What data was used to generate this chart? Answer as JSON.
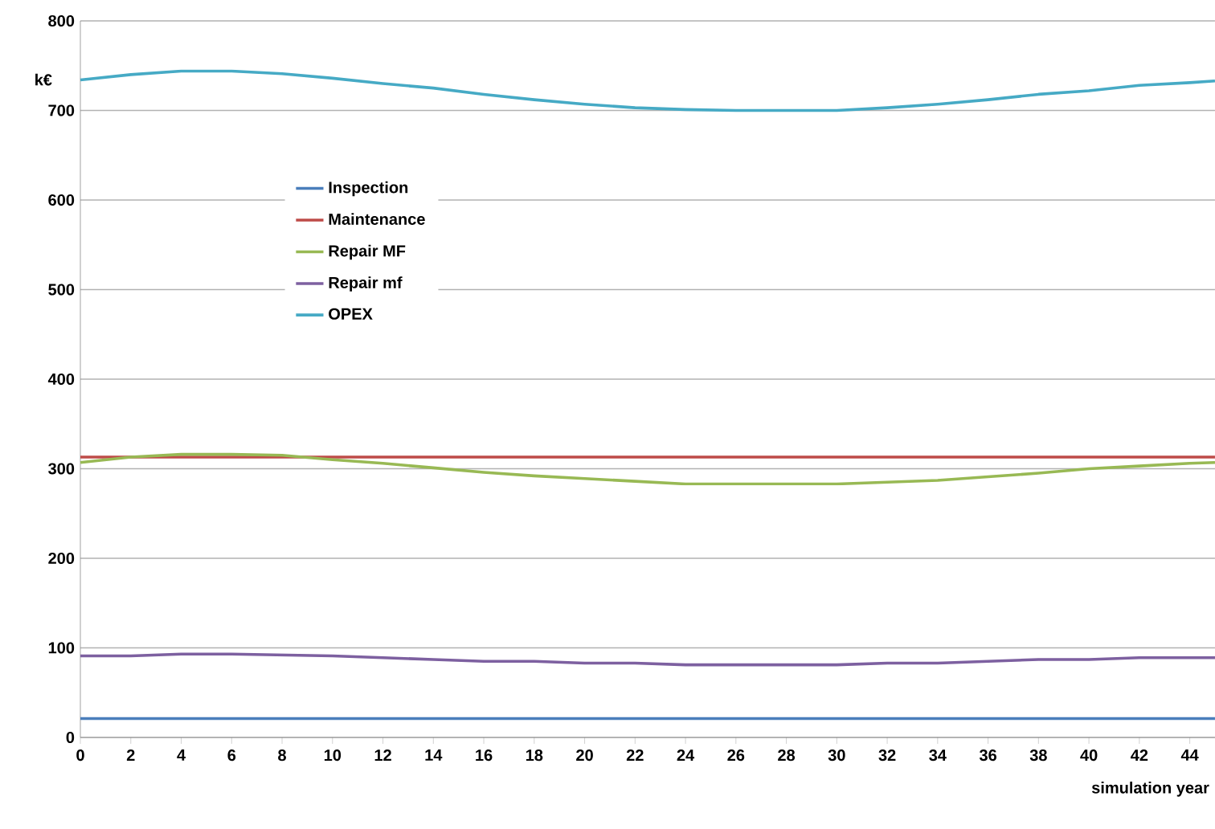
{
  "chart_data": {
    "type": "line",
    "ylabel": "k€",
    "xlabel": "simulation year",
    "x": [
      0,
      2,
      4,
      6,
      8,
      10,
      12,
      14,
      16,
      18,
      20,
      22,
      24,
      26,
      28,
      30,
      32,
      34,
      36,
      38,
      40,
      42,
      44,
      45
    ],
    "series": [
      {
        "name": "Inspection",
        "color": "#4a7ebb",
        "values": [
          21,
          21,
          21,
          21,
          21,
          21,
          21,
          21,
          21,
          21,
          21,
          21,
          21,
          21,
          21,
          21,
          21,
          21,
          21,
          21,
          21,
          21,
          21,
          21
        ]
      },
      {
        "name": "Maintenance",
        "color": "#be4b48",
        "values": [
          313,
          313,
          313,
          313,
          313,
          313,
          313,
          313,
          313,
          313,
          313,
          313,
          313,
          313,
          313,
          313,
          313,
          313,
          313,
          313,
          313,
          313,
          313,
          313
        ]
      },
      {
        "name": "Repair MF",
        "color": "#98b954",
        "values": [
          307,
          313,
          316,
          316,
          315,
          310,
          306,
          301,
          296,
          292,
          289,
          286,
          283,
          283,
          283,
          283,
          285,
          287,
          291,
          295,
          300,
          303,
          306,
          307
        ]
      },
      {
        "name": "Repair mf",
        "color": "#7d60a0",
        "values": [
          91,
          91,
          93,
          93,
          92,
          91,
          89,
          87,
          85,
          85,
          83,
          83,
          81,
          81,
          81,
          81,
          83,
          83,
          85,
          87,
          87,
          89,
          89,
          89
        ]
      },
      {
        "name": "OPEX",
        "color": "#46aac5",
        "values": [
          734,
          740,
          744,
          744,
          741,
          736,
          730,
          725,
          718,
          712,
          707,
          703,
          701,
          700,
          700,
          700,
          703,
          707,
          712,
          718,
          722,
          728,
          731,
          733
        ]
      }
    ],
    "xlim": [
      0,
      45
    ],
    "ylim": [
      0,
      800
    ],
    "xticks": [
      0,
      2,
      4,
      6,
      8,
      10,
      12,
      14,
      16,
      18,
      20,
      22,
      24,
      26,
      28,
      30,
      32,
      34,
      36,
      38,
      40,
      42,
      44
    ],
    "yticks": [
      0,
      100,
      200,
      300,
      400,
      500,
      600,
      700,
      800
    ],
    "grid": "y",
    "legend": "top left"
  }
}
